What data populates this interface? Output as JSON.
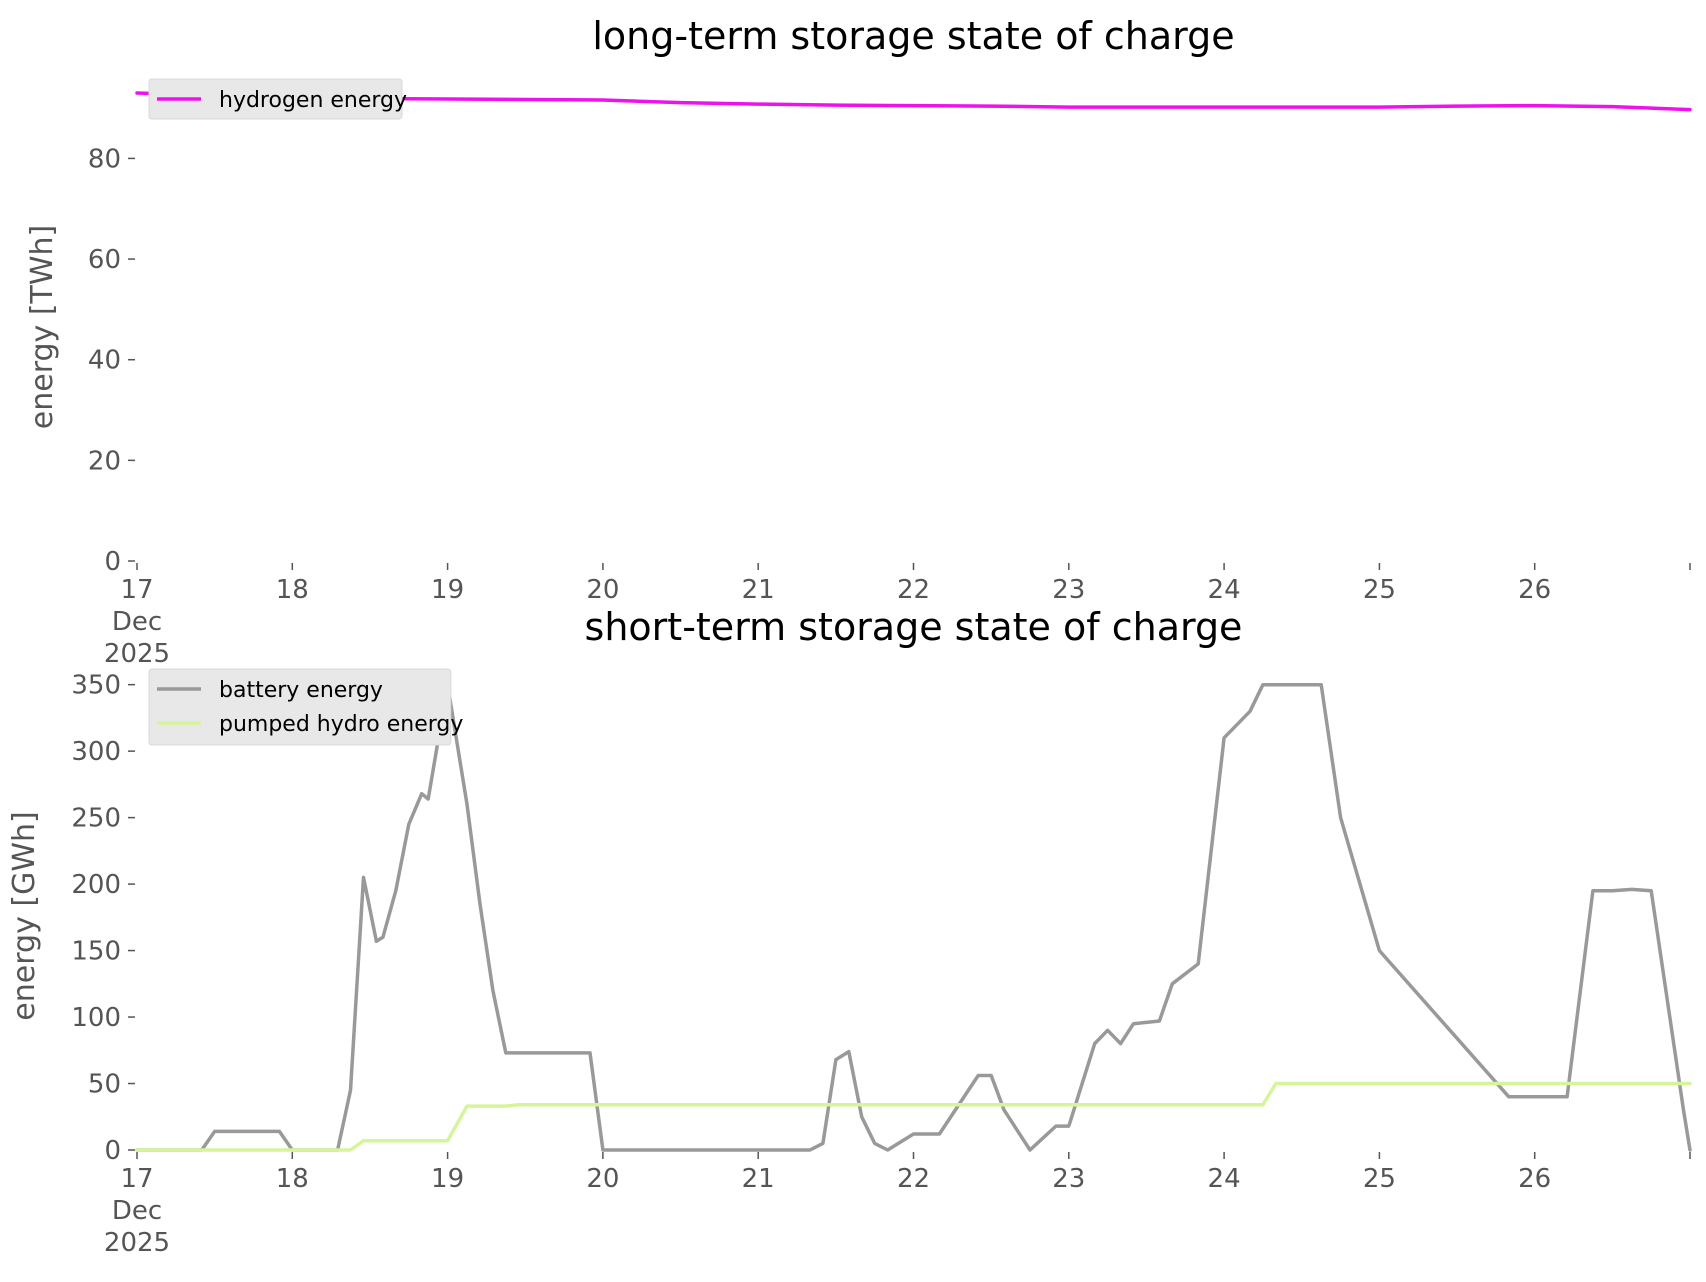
{
  "chart_data": [
    {
      "type": "line",
      "title": "long-term storage state of charge",
      "xlabel": "",
      "ylabel": "energy [TWh]",
      "ylim": [
        0,
        93
      ],
      "yticks": [
        0,
        20,
        40,
        60,
        80
      ],
      "xlim": [
        "2025-12-17",
        "2025-12-27"
      ],
      "xtick_labels": [
        "17\nDec\n2025",
        "18",
        "19",
        "20",
        "21",
        "22",
        "23",
        "24",
        "25",
        "26"
      ],
      "grid": false,
      "legend_position": "top-left",
      "x": [
        "2025-12-17 00:00",
        "2025-12-18 00:00",
        "2025-12-19 00:00",
        "2025-12-20 00:00",
        "2025-12-20 12:00",
        "2025-12-21 00:00",
        "2025-12-21 12:00",
        "2025-12-22 00:00",
        "2025-12-22 12:00",
        "2025-12-23 00:00",
        "2025-12-24 00:00",
        "2025-12-25 00:00",
        "2025-12-25 12:00",
        "2025-12-26 00:00",
        "2025-12-26 12:00",
        "2025-12-27 00:00"
      ],
      "series": [
        {
          "name": "hydrogen energy",
          "color": "#ee11ee",
          "values": [
            93.0,
            92.0,
            91.8,
            91.6,
            91.1,
            90.8,
            90.6,
            90.5,
            90.4,
            90.2,
            90.2,
            90.2,
            90.4,
            90.5,
            90.3,
            89.7
          ]
        }
      ]
    },
    {
      "type": "line",
      "title": "short-term storage state of charge",
      "xlabel": "",
      "ylabel": "energy [GWh]",
      "ylim": [
        0,
        352
      ],
      "yticks": [
        0,
        50,
        100,
        150,
        200,
        250,
        300,
        350
      ],
      "xlim": [
        "2025-12-17",
        "2025-12-27"
      ],
      "xtick_labels": [
        "17\nDec\n2025",
        "18",
        "19",
        "20",
        "21",
        "22",
        "23",
        "24",
        "25",
        "26"
      ],
      "grid": false,
      "legend_position": "top-left",
      "x": [
        "2025-12-17 00:00",
        "2025-12-17 10:00",
        "2025-12-17 12:00",
        "2025-12-17 22:00",
        "2025-12-18 00:00",
        "2025-12-18 07:00",
        "2025-12-18 09:00",
        "2025-12-18 11:00",
        "2025-12-18 13:00",
        "2025-12-18 14:00",
        "2025-12-18 16:00",
        "2025-12-18 18:00",
        "2025-12-18 20:00",
        "2025-12-18 21:00",
        "2025-12-19 00:00",
        "2025-12-19 03:00",
        "2025-12-19 05:00",
        "2025-12-19 07:00",
        "2025-12-19 09:00",
        "2025-12-19 11:00",
        "2025-12-19 12:00",
        "2025-12-19 14:00",
        "2025-12-19 16:00",
        "2025-12-19 18:00",
        "2025-12-19 22:00",
        "2025-12-20 00:00",
        "2025-12-20 02:00",
        "2025-12-20 06:00",
        "2025-12-20 12:00",
        "2025-12-20 20:00",
        "2025-12-21 00:00",
        "2025-12-21 02:00",
        "2025-12-21 08:00",
        "2025-12-21 10:00",
        "2025-12-21 12:00",
        "2025-12-21 14:00",
        "2025-12-21 16:00",
        "2025-12-21 18:00",
        "2025-12-21 20:00",
        "2025-12-22 00:00",
        "2025-12-22 04:00",
        "2025-12-22 10:00",
        "2025-12-22 12:00",
        "2025-12-22 14:00",
        "2025-12-22 18:00",
        "2025-12-22 22:00",
        "2025-12-23 00:00",
        "2025-12-23 04:00",
        "2025-12-23 06:00",
        "2025-12-23 08:00",
        "2025-12-23 10:00",
        "2025-12-23 14:00",
        "2025-12-23 16:00",
        "2025-12-23 20:00",
        "2025-12-24 00:00",
        "2025-12-24 04:00",
        "2025-12-24 06:00",
        "2025-12-24 08:00",
        "2025-12-24 10:00",
        "2025-12-24 13:00",
        "2025-12-24 15:00",
        "2025-12-24 18:00",
        "2025-12-25 00:00",
        "2025-12-25 20:00",
        "2025-12-26 00:00",
        "2025-12-26 05:00",
        "2025-12-26 09:00",
        "2025-12-26 12:00",
        "2025-12-26 15:00",
        "2025-12-26 18:00",
        "2025-12-26 23:00",
        "2025-12-27 00:00"
      ],
      "series": [
        {
          "name": "battery energy",
          "color": "#999999",
          "values": [
            0,
            0,
            14,
            14,
            0,
            0,
            45,
            205,
            157,
            160,
            195,
            245,
            268,
            264,
            350,
            260,
            185,
            120,
            73,
            73,
            73,
            73,
            73,
            73,
            73,
            0,
            0,
            0,
            0,
            0,
            0,
            0,
            0,
            5,
            68,
            74,
            25,
            5,
            0,
            12,
            12,
            56,
            56,
            30,
            0,
            18,
            18,
            80,
            90,
            80,
            95,
            97,
            125,
            140,
            310,
            330,
            350,
            350,
            350,
            350,
            350,
            250,
            150,
            40,
            40,
            40,
            195,
            195,
            196,
            195,
            30,
            0
          ]
        },
        {
          "name": "pumped hydro energy",
          "color": "#d5f59a",
          "values": [
            0,
            0,
            0,
            0,
            0,
            0,
            0,
            7,
            7,
            7,
            7,
            7,
            7,
            7,
            7,
            33,
            33,
            33,
            33,
            34,
            34,
            34,
            34,
            34,
            34,
            34,
            34,
            34,
            34,
            34,
            34,
            34,
            34,
            34,
            34,
            34,
            34,
            34,
            34,
            34,
            34,
            34,
            34,
            34,
            34,
            34,
            34,
            34,
            34,
            34,
            34,
            34,
            34,
            34,
            34,
            34,
            34,
            50,
            50,
            50,
            50,
            50,
            50,
            50,
            50,
            50,
            50,
            50,
            50,
            50,
            50,
            50
          ]
        }
      ]
    }
  ]
}
